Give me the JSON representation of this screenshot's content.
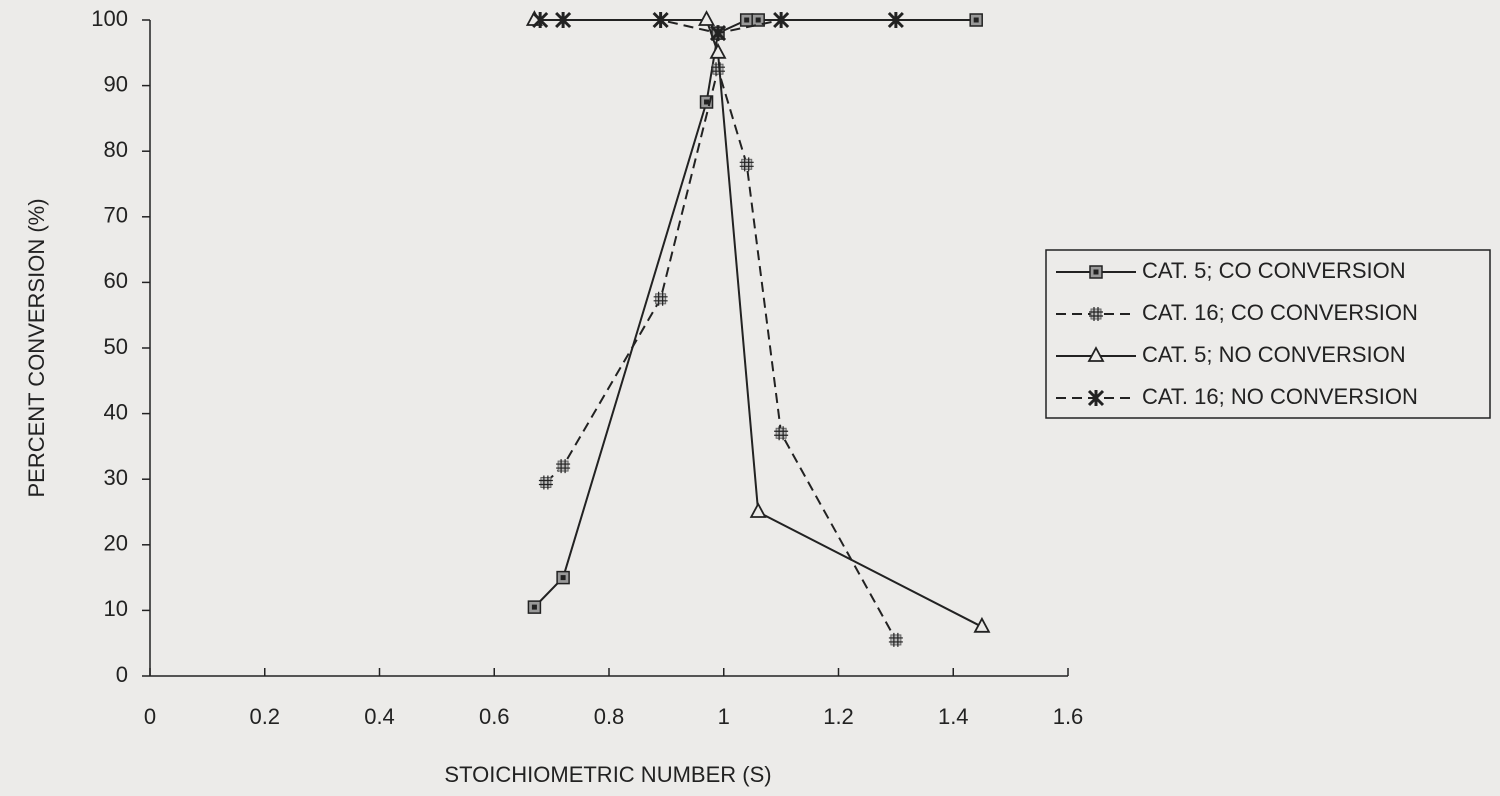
{
  "chart_data": {
    "type": "line",
    "x_label": "STOICHIOMETRIC  NUMBER (S)",
    "y_label": "PERCENT  CONVERSION (%)",
    "xlim": [
      0,
      1.6
    ],
    "xticks": [
      0,
      0.2,
      0.4,
      0.6,
      0.8,
      1,
      1.2,
      1.4,
      1.6
    ],
    "ylim": [
      0,
      100
    ],
    "yticks": [
      0,
      10,
      20,
      30,
      40,
      50,
      60,
      70,
      80,
      90,
      100
    ],
    "legend": "right",
    "series": [
      {
        "name": "CAT. 5; CO CONVERSION",
        "color": "#222222",
        "line_style": "solid",
        "marker": "square",
        "x": [
          0.67,
          0.72,
          0.97,
          0.99,
          1.04,
          1.06,
          1.44
        ],
        "values": [
          10.5,
          15,
          87.5,
          98,
          100,
          100,
          100
        ]
      },
      {
        "name": "CAT. 16; CO CONVERSION",
        "color": "#222222",
        "line_style": "dashed",
        "marker": "hash",
        "x": [
          0.69,
          0.72,
          0.89,
          0.99,
          1.04,
          1.1,
          1.3
        ],
        "values": [
          29.5,
          32,
          57.5,
          92.5,
          78,
          37,
          5.5
        ]
      },
      {
        "name": "CAT. 5; NO CONVERSION",
        "color": "#222222",
        "line_style": "solid",
        "marker": "triangle",
        "x": [
          0.67,
          0.97,
          0.99,
          1.06,
          1.45
        ],
        "values": [
          100,
          100,
          95,
          25,
          7.5
        ]
      },
      {
        "name": "CAT. 16; NO CONVERSION",
        "color": "#222222",
        "line_style": "dashed",
        "marker": "asterisk",
        "x": [
          0.68,
          0.72,
          0.89,
          0.99,
          1.1,
          1.3
        ],
        "values": [
          100,
          100,
          100,
          98,
          100,
          100
        ]
      }
    ]
  }
}
